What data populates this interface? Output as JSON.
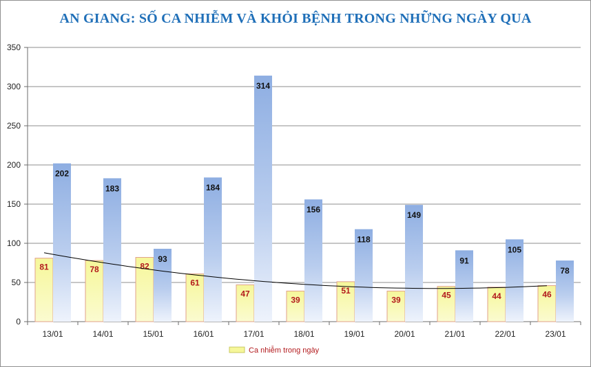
{
  "chart_data": {
    "type": "bar",
    "title": "AN GIANG: SỐ CA NHIỄM VÀ KHỎI BỆNH TRONG NHỮNG NGÀY QUA",
    "categories": [
      "13/01",
      "14/01",
      "15/01",
      "16/01",
      "17/01",
      "18/01",
      "19/01",
      "20/01",
      "21/01",
      "22/01",
      "23/01"
    ],
    "series": [
      {
        "name": "Ca nhiễm trong ngày",
        "values": [
          81,
          78,
          82,
          61,
          47,
          39,
          51,
          39,
          45,
          44,
          46
        ],
        "color": "#f6f79a"
      },
      {
        "values": [
          202,
          183,
          93,
          184,
          314,
          156,
          118,
          149,
          91,
          105,
          78
        ],
        "color": "#8eaee2"
      }
    ],
    "trendline": {
      "of_series": "Ca nhiễm trong ngày",
      "kind": "polynomial",
      "color": "#000000"
    },
    "yticks": [
      0,
      50,
      100,
      150,
      200,
      250,
      300,
      350
    ],
    "ylim": [
      0,
      350
    ],
    "xlabel": "",
    "ylabel": "",
    "grid": true,
    "legend_position": "bottom-center"
  }
}
